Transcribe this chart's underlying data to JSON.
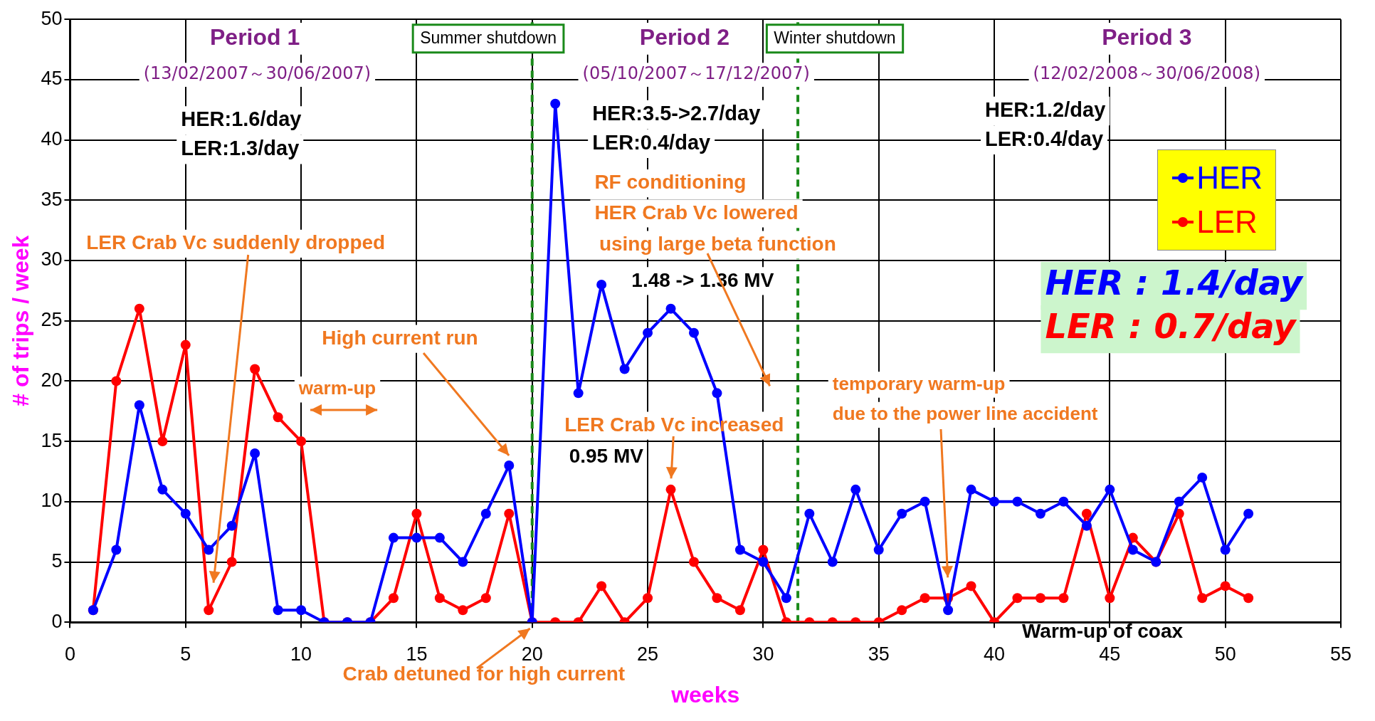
{
  "chart_data": {
    "type": "line",
    "xlabel": "weeks",
    "ylabel": "# of trips / week",
    "x": [
      1,
      2,
      3,
      4,
      5,
      6,
      7,
      8,
      9,
      10,
      11,
      12,
      13,
      14,
      15,
      16,
      17,
      18,
      19,
      20,
      21,
      22,
      23,
      24,
      25,
      26,
      27,
      28,
      29,
      30,
      31,
      32,
      33,
      34,
      35,
      36,
      37,
      38,
      39,
      40,
      41,
      42,
      43,
      44,
      45,
      46,
      47,
      48,
      49,
      50,
      51
    ],
    "series": [
      {
        "name": "HER",
        "color": "#0000ff",
        "values": [
          1,
          6,
          18,
          11,
          9,
          6,
          8,
          14,
          1,
          1,
          0,
          0,
          0,
          7,
          7,
          7,
          5,
          9,
          13,
          0,
          43,
          19,
          28,
          21,
          24,
          26,
          24,
          19,
          6,
          5,
          2,
          9,
          5,
          11,
          6,
          9,
          10,
          1,
          11,
          10,
          10,
          9,
          10,
          8,
          11,
          6,
          5,
          10,
          12,
          6,
          9
        ]
      },
      {
        "name": "LER",
        "color": "#ff0000",
        "values": [
          1,
          20,
          26,
          15,
          23,
          1,
          5,
          21,
          17,
          15,
          0,
          0,
          0,
          2,
          9,
          2,
          1,
          2,
          9,
          0,
          0,
          0,
          3,
          0,
          2,
          11,
          5,
          2,
          1,
          6,
          0,
          0,
          0,
          0,
          0,
          1,
          2,
          2,
          3,
          0,
          2,
          2,
          2,
          9,
          2,
          7,
          5,
          9,
          2,
          3,
          2
        ]
      }
    ],
    "xlim": [
      0,
      55
    ],
    "xticks": [
      0,
      5,
      10,
      15,
      20,
      25,
      30,
      35,
      40,
      45,
      50,
      55
    ],
    "ylim": [
      0,
      50
    ],
    "yticks": [
      0,
      5,
      10,
      15,
      20,
      25,
      30,
      35,
      40,
      45,
      50
    ],
    "grid": true,
    "legend": "top right",
    "marker": "circle",
    "line_style": "solid",
    "ref_lines": [
      {
        "axis": "x",
        "value": 20,
        "color": "#1a8a1a",
        "line_style": "dashed"
      },
      {
        "axis": "x",
        "value": 31.5,
        "color": "#1a8a1a",
        "line_style": "dashed"
      }
    ],
    "annotations": [
      "Period 1",
      "(13/02/2007～30/06/2007)",
      "Summer shutdown",
      "Period 2",
      "Winter shutdown",
      "(05/10/2007～17/12/2007)",
      "Period 3",
      "(12/02/2008～30/06/2008)",
      "HER:1.6/day",
      "LER:1.3/day",
      "HER:3.5->2.7/day",
      "LER:0.4/day",
      "HER:1.2/day",
      "LER:0.4/day",
      "RF conditioning",
      "HER Crab Vc lowered",
      "using large beta function",
      "1.48 -> 1.36 MV",
      "LER Crab Vc suddenly dropped",
      "High current run",
      "warm-up",
      "LER Crab Vc increased",
      "0.95 MV",
      "temporary warm-up",
      "due to the power line accident",
      "Warm-up of coax",
      "Crab detuned for high current",
      "HER : 1.4/day",
      "LER : 0.7/day"
    ]
  }
}
